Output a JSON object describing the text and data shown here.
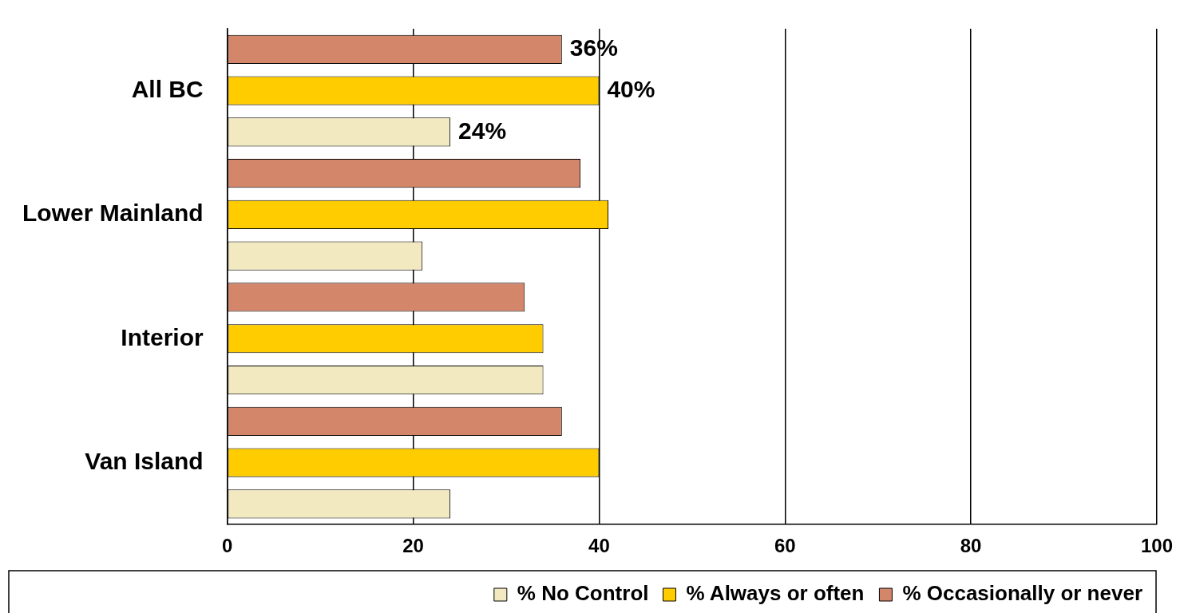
{
  "chart_data": {
    "type": "bar",
    "orientation": "horizontal",
    "categories": [
      "All BC",
      "Lower Mainland",
      "Interior",
      "Van Island"
    ],
    "series": [
      {
        "name": "% No Control",
        "color": "#f2e9c0",
        "values": [
          24,
          21,
          34,
          24
        ],
        "value_labels": [
          "24%",
          null,
          null,
          null
        ]
      },
      {
        "name": "% Always or often",
        "color": "#ffcc00",
        "values": [
          40,
          41,
          34,
          40
        ],
        "value_labels": [
          "40%",
          null,
          null,
          null
        ]
      },
      {
        "name": "% Occasionally or never",
        "color": "#d4866b",
        "values": [
          36,
          38,
          32,
          36
        ],
        "value_labels": [
          "36%",
          null,
          null,
          null
        ]
      }
    ],
    "xlim": [
      0,
      100
    ],
    "xticks": [
      0,
      20,
      40,
      60,
      80,
      100
    ],
    "grid": "x",
    "legend": "bottom"
  }
}
